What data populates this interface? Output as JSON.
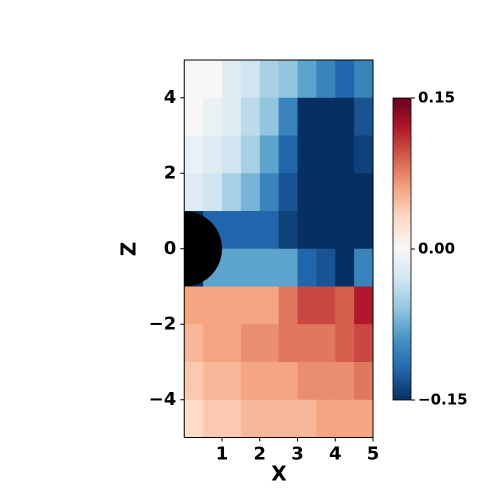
{
  "chart_data": {
    "type": "heatmap",
    "xlabel": "X",
    "ylabel": "Z",
    "xlim": [
      0,
      5
    ],
    "ylim": [
      -5,
      5
    ],
    "xticks": [
      1,
      2,
      3,
      4,
      5
    ],
    "yticks": [
      {
        "value": -4,
        "label": "−4"
      },
      {
        "value": -2,
        "label": "−2"
      },
      0,
      2,
      4
    ],
    "x_edges": [
      0,
      0.5,
      1,
      1.5,
      2,
      2.5,
      3,
      3.5,
      4,
      4.5,
      5
    ],
    "y_edges": [
      5,
      4,
      3,
      2,
      1,
      0,
      -1,
      -2,
      -3,
      -4,
      -5
    ],
    "z": [
      [
        0,
        0,
        -0.02,
        -0.03,
        -0.05,
        -0.06,
        -0.08,
        -0.1,
        -0.12,
        -0.1
      ],
      [
        0,
        -0.01,
        -0.02,
        -0.04,
        -0.06,
        -0.1,
        -0.15,
        -0.15,
        -0.15,
        -0.13
      ],
      [
        -0.01,
        -0.02,
        -0.03,
        -0.05,
        -0.08,
        -0.12,
        -0.15,
        -0.15,
        -0.15,
        -0.14
      ],
      [
        -0.02,
        -0.03,
        -0.05,
        -0.07,
        -0.1,
        -0.13,
        -0.15,
        -0.15,
        -0.15,
        -0.15
      ],
      [
        -0.15,
        -0.12,
        -0.12,
        -0.12,
        -0.12,
        -0.14,
        -0.15,
        -0.15,
        -0.15,
        -0.15
      ],
      [
        -0.15,
        -0.08,
        -0.08,
        -0.08,
        -0.08,
        -0.08,
        -0.12,
        -0.13,
        -0.15,
        -0.1
      ],
      [
        0.06,
        0.06,
        0.06,
        0.06,
        0.06,
        0.08,
        0.1,
        0.1,
        0.09,
        0.12
      ],
      [
        0.05,
        0.06,
        0.06,
        0.07,
        0.07,
        0.08,
        0.08,
        0.08,
        0.09,
        0.1
      ],
      [
        0.04,
        0.05,
        0.05,
        0.06,
        0.06,
        0.06,
        0.07,
        0.07,
        0.07,
        0.08
      ],
      [
        0.03,
        0.04,
        0.04,
        0.05,
        0.05,
        0.05,
        0.05,
        0.06,
        0.06,
        0.06
      ]
    ],
    "colormap": [
      "#053061",
      "#2166ac",
      "#4393c3",
      "#92c5de",
      "#d1e5f0",
      "#f7f7f7",
      "#fddbc7",
      "#f4a582",
      "#d6604d",
      "#b2182b",
      "#67001f"
    ],
    "clim": [
      -0.15,
      0.15
    ],
    "cticks": [
      {
        "value": -0.15,
        "label": "−0.15"
      },
      {
        "value": 0,
        "label": "0.00"
      },
      0.15
    ]
  }
}
